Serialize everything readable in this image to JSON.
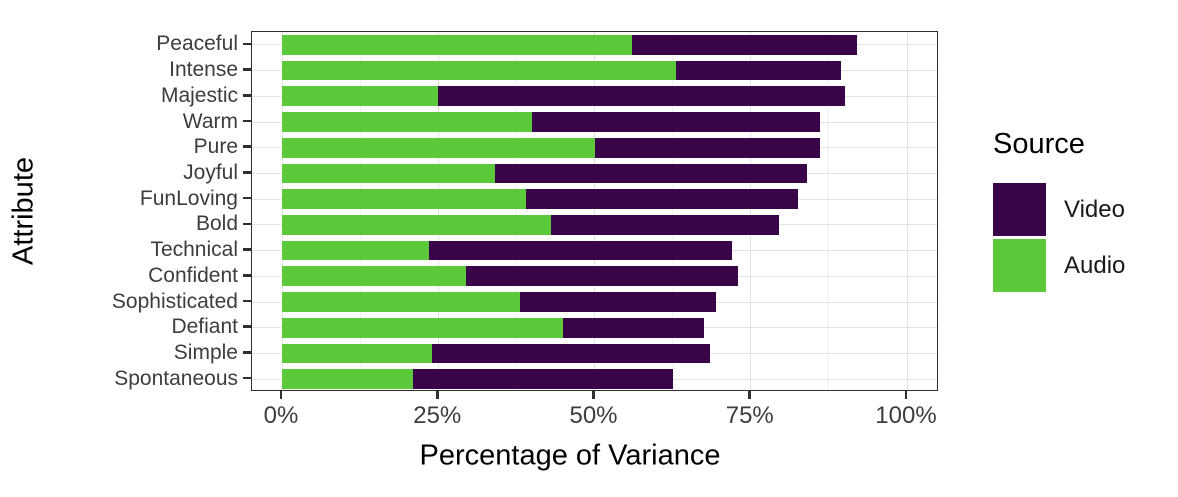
{
  "chart_data": {
    "type": "bar",
    "orientation": "horizontal",
    "stacked": true,
    "title": "",
    "xlabel": "Percentage of Variance",
    "ylabel": "Attribute",
    "categories": [
      "Peaceful",
      "Intense",
      "Majestic",
      "Warm",
      "Pure",
      "Joyful",
      "FunLoving",
      "Bold",
      "Technical",
      "Confident",
      "Sophisticated",
      "Defiant",
      "Simple",
      "Spontaneous"
    ],
    "series": [
      {
        "name": "Audio",
        "color": "#5CC83C",
        "values": [
          56,
          63,
          25,
          40,
          50,
          34,
          39,
          43,
          23.5,
          29.5,
          38,
          45,
          24,
          21
        ]
      },
      {
        "name": "Video",
        "color": "#3A0548",
        "values": [
          36,
          26.5,
          65,
          46,
          36,
          50,
          43.5,
          36.5,
          48.5,
          43.5,
          31.5,
          22.5,
          44.5,
          41.5
        ]
      }
    ],
    "stack_totals": [
      92,
      89.5,
      90,
      86,
      86,
      84,
      82.5,
      79.5,
      72,
      73,
      69.5,
      67.5,
      68.5,
      62.5
    ],
    "xlim": [
      0,
      100
    ],
    "x_ticks": [
      {
        "label": "0%",
        "value": 0
      },
      {
        "label": "25%",
        "value": 25
      },
      {
        "label": "50%",
        "value": 50
      },
      {
        "label": "75%",
        "value": 75
      },
      {
        "label": "100%",
        "value": 100
      }
    ],
    "minor_tick_values": [
      12.5,
      37.5,
      62.5,
      87.5
    ],
    "grid": true,
    "legend": {
      "title": "Source",
      "position": "right",
      "entries": [
        {
          "label": "Video",
          "color": "#3A0548"
        },
        {
          "label": "Audio",
          "color": "#5CC83C"
        }
      ]
    },
    "colors": {
      "audio_green": "#5CC83C",
      "video_purple": "#3A0548",
      "grid_major": "#e3e3e3",
      "grid_minor": "#f1f1f1",
      "axis_text": "#3d3d3d",
      "panel_border": "#2f2f2f"
    }
  }
}
